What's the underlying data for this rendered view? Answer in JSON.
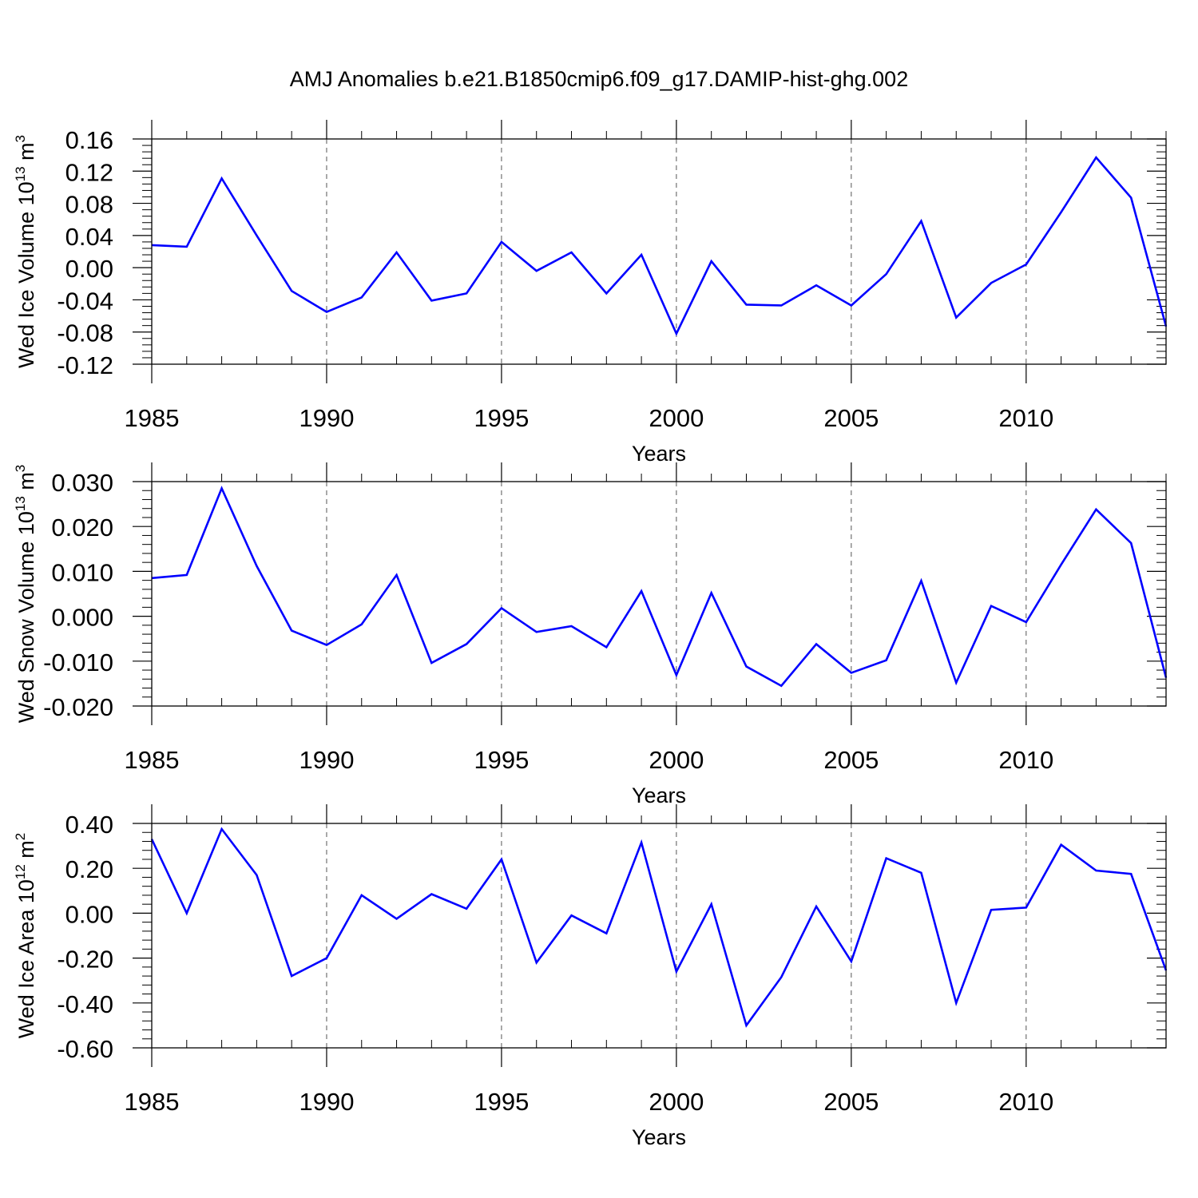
{
  "figure": {
    "title": "AMJ Anomalies b.e21.B1850cmip6.f09_g17.DAMIP-hist-ghg.002"
  },
  "chart_data": [
    {
      "type": "line",
      "ylabel_main": "Wed Ice Volume 10",
      "ylabel_exp": "13",
      "ylabel_unit": " m",
      "ylabel_unit_exp": "3",
      "xlabel": "Years",
      "xlim": [
        1985,
        2014
      ],
      "ylim": [
        -0.12,
        0.16
      ],
      "yticks": [
        -0.12,
        -0.08,
        -0.04,
        0.0,
        0.04,
        0.08,
        0.12,
        0.16
      ],
      "ytick_labels": [
        "-0.12",
        "-0.08",
        "-0.04",
        "0.00",
        "0.04",
        "0.08",
        "0.12",
        "0.16"
      ],
      "xticks": [
        1985,
        1990,
        1995,
        2000,
        2005,
        2010
      ],
      "xtick_labels": [
        "1985",
        "1990",
        "1995",
        "2000",
        "2005",
        "2010"
      ],
      "grid": "vertical dashed at major x ticks",
      "series": [
        {
          "color": "#0000ff",
          "x": [
            1985,
            1986,
            1987,
            1988,
            1989,
            1990,
            1991,
            1992,
            1993,
            1994,
            1995,
            1996,
            1997,
            1998,
            1999,
            2000,
            2001,
            2002,
            2003,
            2004,
            2005,
            2006,
            2007,
            2008,
            2009,
            2010,
            2011,
            2012,
            2013,
            2014
          ],
          "values": [
            0.028,
            0.026,
            0.111,
            0.04,
            -0.029,
            -0.055,
            -0.037,
            0.019,
            -0.041,
            -0.032,
            0.032,
            -0.004,
            0.019,
            -0.032,
            0.016,
            -0.082,
            0.008,
            -0.046,
            -0.047,
            -0.022,
            -0.047,
            -0.008,
            0.058,
            -0.062,
            -0.019,
            0.004,
            0.069,
            0.137,
            0.087,
            -0.073
          ]
        }
      ]
    },
    {
      "type": "line",
      "ylabel_main": "Wed Snow Volume 10",
      "ylabel_exp": "13",
      "ylabel_unit": " m",
      "ylabel_unit_exp": "3",
      "xlabel": "Years",
      "xlim": [
        1985,
        2014
      ],
      "ylim": [
        -0.02,
        0.03
      ],
      "yticks": [
        -0.02,
        -0.01,
        0.0,
        0.01,
        0.02,
        0.03
      ],
      "ytick_labels": [
        "-0.020",
        "-0.010",
        "0.000",
        "0.010",
        "0.020",
        "0.030"
      ],
      "xticks": [
        1985,
        1990,
        1995,
        2000,
        2005,
        2010
      ],
      "xtick_labels": [
        "1985",
        "1990",
        "1995",
        "2000",
        "2005",
        "2010"
      ],
      "grid": "vertical dashed at major x ticks",
      "series": [
        {
          "color": "#0000ff",
          "x": [
            1985,
            1986,
            1987,
            1988,
            1989,
            1990,
            1991,
            1992,
            1993,
            1994,
            1995,
            1996,
            1997,
            1998,
            1999,
            2000,
            2001,
            2002,
            2003,
            2004,
            2005,
            2006,
            2007,
            2008,
            2009,
            2010,
            2011,
            2012,
            2013,
            2014
          ],
          "values": [
            0.0085,
            0.0092,
            0.0285,
            0.0112,
            -0.0032,
            -0.0064,
            -0.0018,
            0.0092,
            -0.0104,
            -0.0062,
            0.0018,
            -0.0035,
            -0.0022,
            -0.0069,
            0.0056,
            -0.0131,
            0.0052,
            -0.0112,
            -0.0155,
            -0.0062,
            -0.0126,
            -0.0098,
            0.0079,
            -0.0148,
            0.0023,
            -0.0013,
            0.0115,
            0.0238,
            0.0163,
            -0.0137
          ]
        }
      ]
    },
    {
      "type": "line",
      "ylabel_main": "Wed Ice Area 10",
      "ylabel_exp": "12",
      "ylabel_unit": " m",
      "ylabel_unit_exp": "2",
      "xlabel": "Years",
      "xlim": [
        1985,
        2014
      ],
      "ylim": [
        -0.6,
        0.4
      ],
      "yticks": [
        -0.6,
        -0.4,
        -0.2,
        0.0,
        0.2,
        0.4
      ],
      "ytick_labels": [
        "-0.60",
        "-0.40",
        "-0.20",
        "0.00",
        "0.20",
        "0.40"
      ],
      "xticks": [
        1985,
        1990,
        1995,
        2000,
        2005,
        2010
      ],
      "xtick_labels": [
        "1985",
        "1990",
        "1995",
        "2000",
        "2005",
        "2010"
      ],
      "grid": "vertical dashed at major x ticks",
      "series": [
        {
          "color": "#0000ff",
          "x": [
            1985,
            1986,
            1987,
            1988,
            1989,
            1990,
            1991,
            1992,
            1993,
            1994,
            1995,
            1996,
            1997,
            1998,
            1999,
            2000,
            2001,
            2002,
            2003,
            2004,
            2005,
            2006,
            2007,
            2008,
            2009,
            2010,
            2011,
            2012,
            2013,
            2014
          ],
          "values": [
            0.33,
            0.0,
            0.375,
            0.17,
            -0.28,
            -0.2,
            0.08,
            -0.025,
            0.085,
            0.02,
            0.24,
            -0.22,
            -0.01,
            -0.09,
            0.315,
            -0.26,
            0.04,
            -0.5,
            -0.285,
            0.03,
            -0.215,
            0.245,
            0.18,
            -0.4,
            0.015,
            0.025,
            0.305,
            0.19,
            0.175,
            -0.255
          ]
        }
      ]
    }
  ]
}
